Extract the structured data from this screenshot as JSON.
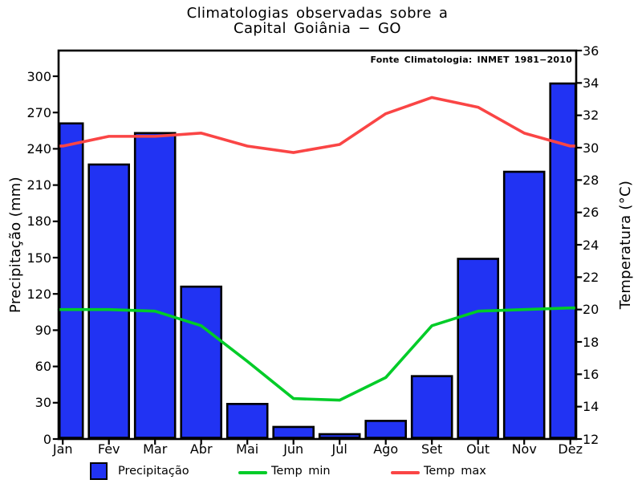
{
  "title": {
    "line1": "Climatologias observadas sobre a",
    "line2": "Capital Goiânia − GO"
  },
  "source_note": "Fonte Climatologia: INMET 1981−2010",
  "legend": {
    "precipitation": "Precipitação",
    "temp_min": "Temp min",
    "temp_max": "Temp max"
  },
  "colors": {
    "background": "#ffffff",
    "bar_fill": "#2133f3",
    "bar_stroke": "#000000",
    "temp_min_line": "#00cc28",
    "temp_max_line": "#fa4545",
    "axis": "#000000"
  },
  "chart_data": {
    "type": "combo: bar (precipitation) + 2 lines (temperature)",
    "title": "Climatologias observadas sobre a Capital Goiânia − GO",
    "annotation": "Fonte Climatologia: INMET 1981−2010",
    "categories": [
      "Jan",
      "Fev",
      "Mar",
      "Abr",
      "Mai",
      "Jun",
      "Jul",
      "Ago",
      "Set",
      "Out",
      "Nov",
      "Dez"
    ],
    "series": [
      {
        "name": "Precipitação",
        "type": "bar",
        "axis": "left",
        "unit": "mm",
        "color": "#2133f3",
        "values": [
          261,
          227,
          253,
          126,
          29,
          10,
          4,
          15,
          52,
          149,
          221,
          294
        ]
      },
      {
        "name": "Temp min",
        "type": "line",
        "axis": "right",
        "unit": "°C",
        "color": "#00cc28",
        "values": [
          20.0,
          20.0,
          19.9,
          19.0,
          16.8,
          14.5,
          14.4,
          15.8,
          19.0,
          19.9,
          20.0,
          20.1
        ]
      },
      {
        "name": "Temp max",
        "type": "line",
        "axis": "right",
        "unit": "°C",
        "color": "#fa4545",
        "values": [
          30.1,
          30.7,
          30.7,
          30.9,
          30.1,
          29.7,
          30.2,
          32.1,
          33.1,
          32.5,
          30.9,
          30.1
        ]
      }
    ],
    "left_axis": {
      "label": "Precipitação (mm)",
      "ticks": [
        0,
        30,
        60,
        90,
        120,
        150,
        180,
        210,
        240,
        270,
        300
      ],
      "range": [
        0,
        321
      ]
    },
    "right_axis": {
      "label": "Temperatura (°C)",
      "ticks": [
        12,
        14,
        16,
        18,
        20,
        22,
        24,
        26,
        28,
        30,
        32,
        34,
        36
      ],
      "range": [
        12,
        36
      ]
    },
    "grid": false,
    "legend_position": "bottom"
  }
}
